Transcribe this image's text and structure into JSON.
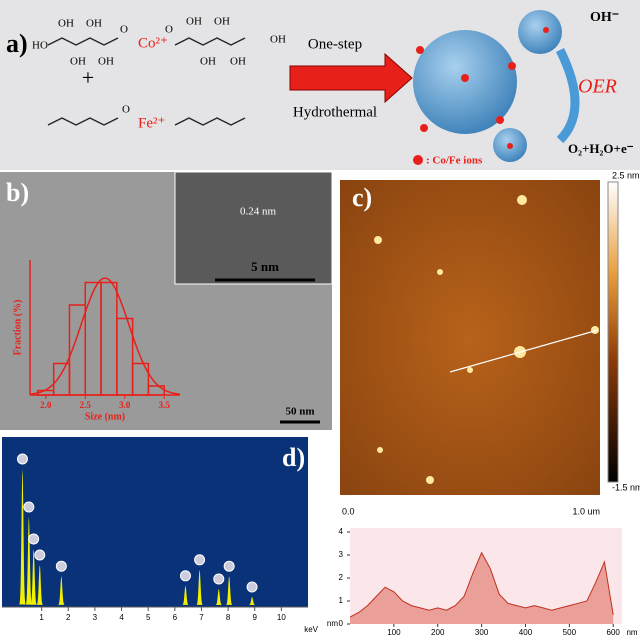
{
  "panel_a": {
    "label": "a)",
    "cation1": "Co²⁺",
    "cation2": "Fe²⁺",
    "plus": "+",
    "step1": "One-step",
    "step2": "Hydrothermal",
    "oer": "OER",
    "oh": "OH⁻",
    "products": "O₂+H₂O+e⁻",
    "legend": ": Co/Fe ions",
    "molecule_labels": [
      "HO",
      "OH",
      "OH",
      "OH",
      "OH",
      "O",
      "O",
      "OH",
      "OH",
      "OH",
      "OH",
      "OH",
      "O"
    ]
  },
  "panel_b": {
    "label": "b)",
    "scale": "50 nm",
    "inset_spacing": "0.24 nm",
    "inset_scale": "5 nm",
    "histogram": {
      "type": "histogram",
      "xlabel": "Size (nm)",
      "ylabel": "Fraction (%)",
      "bins": [
        1.9,
        2.1,
        2.3,
        2.5,
        2.7,
        2.9,
        3.1,
        3.3,
        3.5
      ],
      "counts": [
        1,
        7,
        20,
        25,
        25,
        17,
        7,
        2
      ],
      "xlim": [
        1.8,
        3.7
      ],
      "ylim": [
        0,
        30
      ],
      "xticks": [
        {
          "value": 2,
          "label": "2.0"
        },
        {
          "value": 2.5,
          "label": "2.5"
        },
        {
          "value": 3,
          "label": "3.0"
        },
        {
          "value": 3.5,
          "label": "3.5"
        }
      ],
      "color": "#e8201a"
    }
  },
  "panel_c": {
    "label": "c)",
    "scale_top": "2.5 nm",
    "scale_bottom": "-1.5 nm",
    "x_start": "0.0",
    "x_end": "1.0 um",
    "profile": {
      "type": "line",
      "x": [
        0,
        20,
        40,
        60,
        80,
        100,
        120,
        140,
        160,
        180,
        200,
        220,
        240,
        260,
        280,
        300,
        320,
        340,
        360,
        380,
        400,
        420,
        440,
        460,
        480,
        500,
        520,
        540,
        560,
        580,
        600
      ],
      "values": [
        0.3,
        0.5,
        0.8,
        1.2,
        1.6,
        1.4,
        1.0,
        0.8,
        0.7,
        0.6,
        0.7,
        0.6,
        0.8,
        1.2,
        2.2,
        3.1,
        2.4,
        1.3,
        0.9,
        0.8,
        0.7,
        0.8,
        0.7,
        0.6,
        0.7,
        0.8,
        0.9,
        1.0,
        1.8,
        2.7,
        0.4
      ],
      "xlim": [
        0,
        620
      ],
      "ylim": [
        0,
        4
      ],
      "xticks": [
        100,
        200,
        300,
        400,
        500,
        600
      ],
      "yticks": [
        0,
        1,
        2,
        3,
        4
      ],
      "xunit": "nm",
      "yunit": "nm",
      "color": "#e07060"
    }
  },
  "panel_d": {
    "label": "d)",
    "spectrum": {
      "type": "spectrum",
      "xunit": "keV",
      "xlim": [
        0,
        11
      ],
      "ylim": [
        0,
        100
      ],
      "xticks": [
        1,
        2,
        3,
        4,
        5,
        6,
        7,
        8,
        9,
        10
      ],
      "color": "#f0f000",
      "peaks": [
        {
          "x": 0.28,
          "h": 85
        },
        {
          "x": 0.52,
          "h": 55
        },
        {
          "x": 0.7,
          "h": 35
        },
        {
          "x": 0.93,
          "h": 25
        },
        {
          "x": 1.74,
          "h": 18
        },
        {
          "x": 6.4,
          "h": 12
        },
        {
          "x": 6.93,
          "h": 22
        },
        {
          "x": 7.65,
          "h": 10
        },
        {
          "x": 8.04,
          "h": 18
        },
        {
          "x": 8.9,
          "h": 5
        }
      ]
    }
  }
}
